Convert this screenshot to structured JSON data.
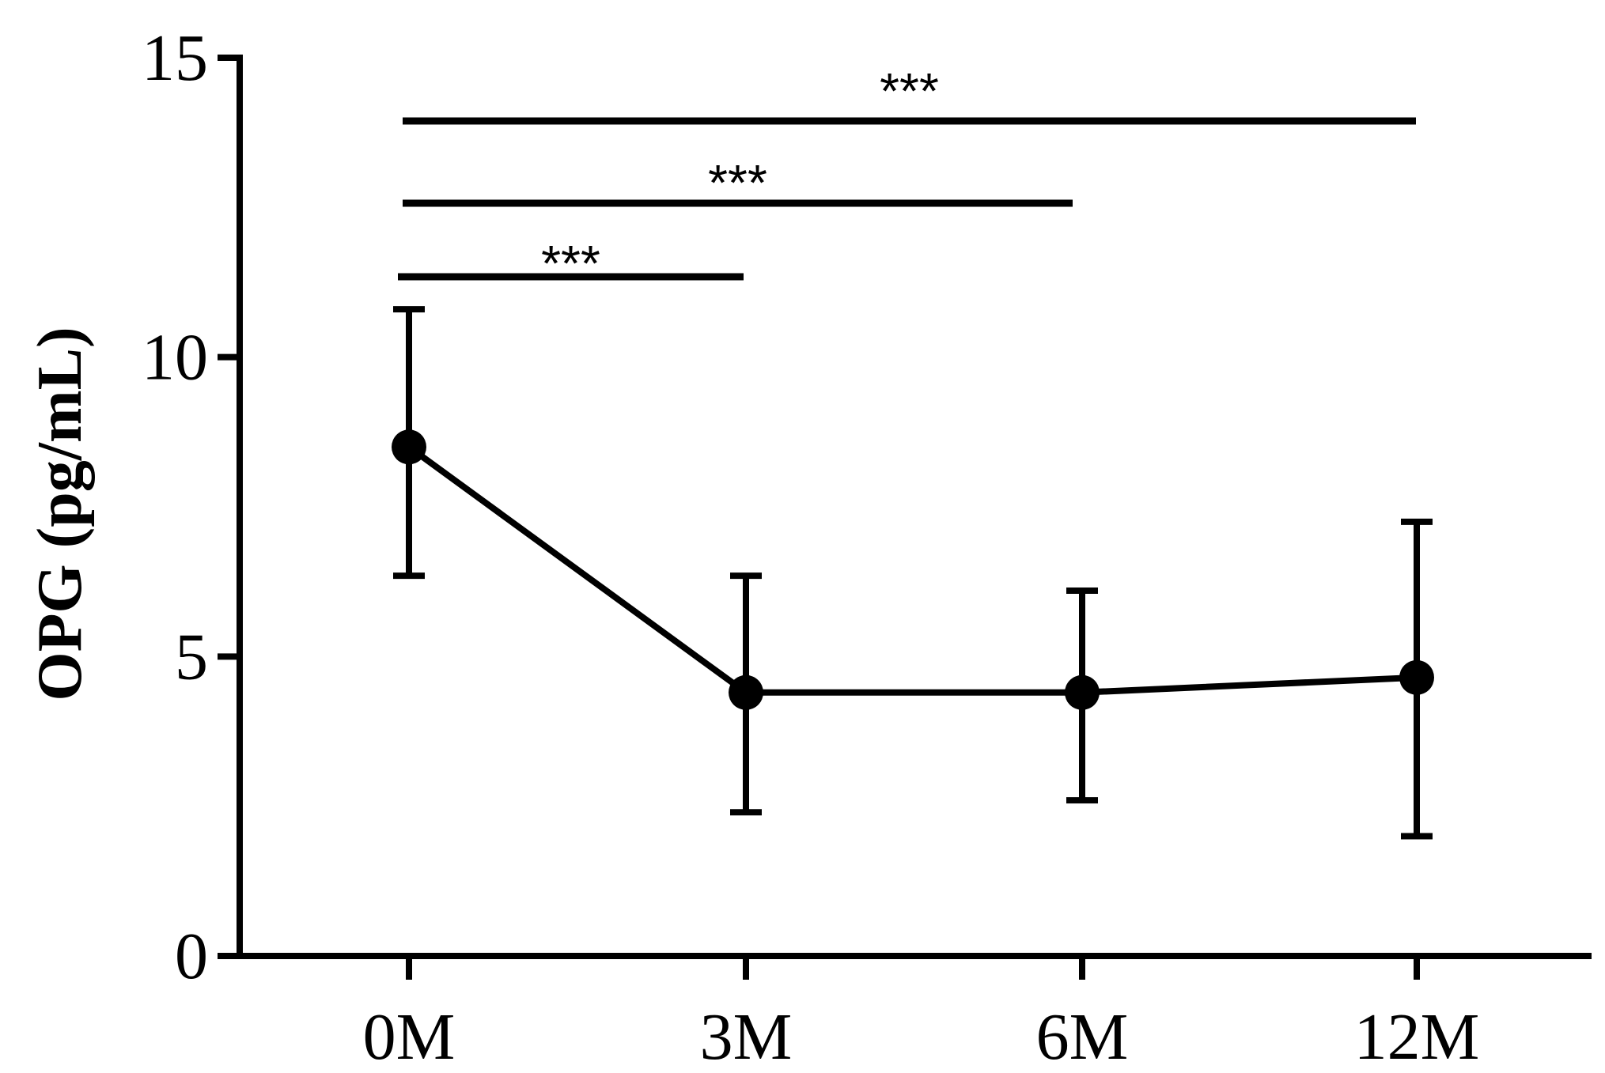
{
  "chart_data": {
    "type": "line",
    "title": "",
    "xlabel": "",
    "ylabel": "OPG (pg/mL)",
    "categories": [
      "0M",
      "3M",
      "6M",
      "12M"
    ],
    "series": [
      {
        "values": [
          8.5,
          4.4,
          4.4,
          4.65
        ],
        "error_upper": [
          10.8,
          6.35,
          6.1,
          7.25
        ],
        "error_lower": [
          6.35,
          2.4,
          2.6,
          2.0
        ]
      }
    ],
    "ylim": [
      0,
      15
    ],
    "yticks": [
      "0",
      "5",
      "10",
      "15"
    ],
    "grid": false,
    "color": "#000000",
    "significance": [
      {
        "from": "0M",
        "to": "3M",
        "label": "***"
      },
      {
        "from": "0M",
        "to": "6M",
        "label": "***"
      },
      {
        "from": "0M",
        "to": "12M",
        "label": "***"
      }
    ]
  }
}
